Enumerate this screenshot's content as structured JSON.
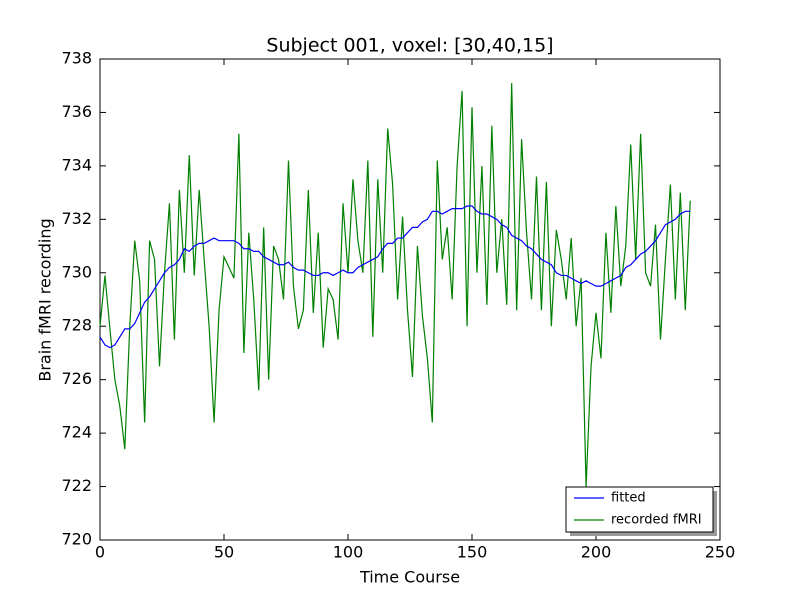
{
  "chart_data": {
    "type": "line",
    "title": "Subject 001, voxel: [30,40,15]",
    "xlabel": "Time Course",
    "ylabel": "Brain fMRI recording",
    "xlim": [
      0,
      250
    ],
    "xticks": [
      0,
      50,
      100,
      150,
      200,
      250
    ],
    "ylim": [
      720,
      738
    ],
    "yticks": [
      720,
      722,
      724,
      726,
      728,
      730,
      732,
      734,
      736,
      738
    ],
    "legend": "lower right",
    "x": [
      0,
      2,
      4,
      6,
      8,
      10,
      12,
      14,
      16,
      18,
      20,
      22,
      24,
      26,
      28,
      30,
      32,
      34,
      36,
      38,
      40,
      42,
      44,
      46,
      48,
      50,
      52,
      54,
      56,
      58,
      60,
      62,
      64,
      66,
      68,
      70,
      72,
      74,
      76,
      78,
      80,
      82,
      84,
      86,
      88,
      90,
      92,
      94,
      96,
      98,
      100,
      102,
      104,
      106,
      108,
      110,
      112,
      114,
      116,
      118,
      120,
      122,
      124,
      126,
      128,
      130,
      132,
      134,
      136,
      138,
      140,
      142,
      144,
      146,
      148,
      150,
      152,
      154,
      156,
      158,
      160,
      162,
      164,
      166,
      168,
      170,
      172,
      174,
      176,
      178,
      180,
      182,
      184,
      186,
      188,
      190,
      192,
      194,
      196,
      198,
      200,
      202,
      204,
      206,
      208,
      210,
      212,
      214,
      216,
      218,
      220,
      222,
      224,
      226,
      228,
      230,
      232,
      234,
      236,
      238
    ],
    "series": [
      {
        "name": "fitted",
        "color": "#0000ff",
        "values": [
          727.6,
          727.3,
          727.2,
          727.3,
          727.6,
          727.9,
          727.9,
          728.1,
          728.5,
          728.9,
          729.1,
          729.4,
          729.7,
          730.0,
          730.2,
          730.3,
          730.5,
          730.9,
          730.8,
          731.0,
          731.1,
          731.1,
          731.2,
          731.3,
          731.2,
          731.2,
          731.2,
          731.2,
          731.1,
          730.9,
          730.9,
          730.8,
          730.8,
          730.6,
          730.5,
          730.4,
          730.3,
          730.3,
          730.4,
          730.2,
          730.1,
          730.1,
          730.0,
          729.9,
          729.9,
          730.0,
          730.0,
          729.9,
          730.0,
          730.1,
          730.0,
          730.0,
          730.2,
          730.3,
          730.4,
          730.5,
          730.6,
          730.9,
          731.1,
          731.1,
          731.3,
          731.3,
          731.5,
          731.7,
          731.7,
          731.9,
          732.0,
          732.3,
          732.3,
          732.2,
          732.3,
          732.4,
          732.4,
          732.4,
          732.5,
          732.5,
          732.3,
          732.2,
          732.2,
          732.1,
          732.0,
          731.8,
          731.7,
          731.4,
          731.3,
          731.2,
          731.0,
          730.9,
          730.7,
          730.5,
          730.4,
          730.3,
          730.0,
          729.9,
          729.9,
          729.8,
          729.7,
          729.6,
          729.7,
          729.6,
          729.5,
          729.5,
          729.6,
          729.7,
          729.8,
          729.9,
          730.2,
          730.3,
          730.5,
          730.7,
          730.8,
          731.0,
          731.2,
          731.5,
          731.8,
          731.9,
          732.0,
          732.2,
          732.3,
          732.3
        ]
      },
      {
        "name": "recorded fMRI",
        "color": "#008000",
        "values": [
          728.0,
          729.9,
          727.9,
          726.0,
          725.0,
          723.4,
          728.0,
          731.2,
          729.7,
          724.4,
          731.2,
          730.5,
          726.5,
          730.0,
          732.6,
          727.5,
          733.1,
          730.0,
          734.4,
          729.9,
          733.1,
          730.5,
          728.0,
          724.4,
          728.6,
          730.6,
          730.2,
          729.8,
          735.2,
          727.0,
          731.5,
          729.0,
          725.6,
          731.7,
          726.0,
          731.0,
          730.5,
          729.0,
          734.2,
          729.5,
          727.9,
          728.6,
          733.1,
          728.5,
          731.5,
          727.2,
          729.4,
          729.0,
          727.5,
          732.6,
          730.0,
          733.5,
          731.2,
          730.0,
          734.2,
          727.6,
          733.5,
          730.0,
          735.4,
          733.3,
          729.0,
          732.1,
          728.6,
          726.1,
          731.0,
          728.4,
          726.8,
          724.4,
          734.2,
          730.5,
          731.7,
          729.0,
          734.0,
          736.8,
          728.0,
          736.2,
          730.0,
          734.0,
          728.8,
          735.5,
          730.0,
          732.0,
          728.8,
          737.1,
          728.6,
          735.0,
          731.5,
          729.0,
          733.6,
          728.6,
          733.4,
          728.0,
          731.6,
          730.5,
          729.0,
          731.3,
          728.0,
          729.8,
          722.0,
          726.5,
          728.5,
          726.8,
          731.5,
          728.5,
          732.5,
          729.5,
          731.0,
          734.8,
          730.5,
          735.2,
          730.0,
          729.5,
          731.8,
          727.5,
          730.5,
          733.3,
          729.0,
          733.0,
          728.6,
          732.7
        ]
      }
    ]
  }
}
